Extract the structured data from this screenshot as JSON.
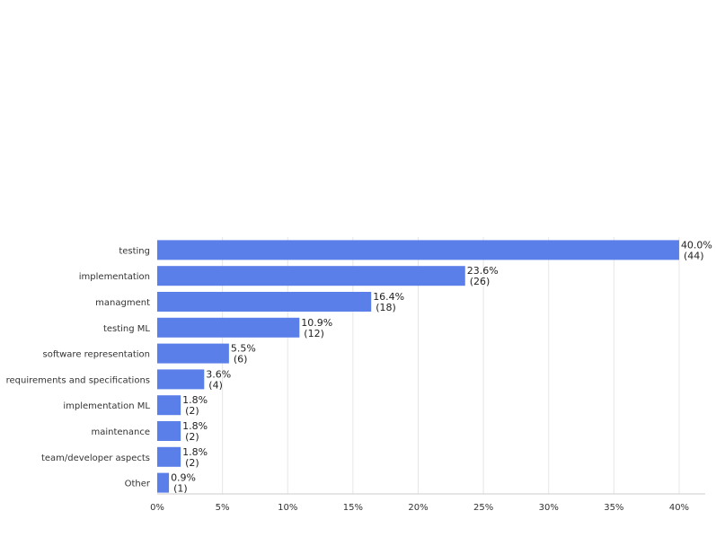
{
  "chart_data": {
    "type": "bar",
    "orientation": "horizontal",
    "title": "",
    "xlabel": "",
    "ylabel": "",
    "xlim": [
      0,
      42
    ],
    "categories": [
      "testing",
      "implementation",
      "managment",
      "testing ML",
      "software representation",
      "requirements and specifications",
      "implementation ML",
      "maintenance",
      "team/developer aspects",
      "Other"
    ],
    "values": [
      40.0,
      23.6,
      16.4,
      10.9,
      5.5,
      3.6,
      1.8,
      1.8,
      1.8,
      0.9
    ],
    "counts": [
      44,
      26,
      18,
      12,
      6,
      4,
      2,
      2,
      2,
      1
    ],
    "percent_labels": [
      "40.0%",
      "23.6%",
      "16.4%",
      "10.9%",
      "5.5%",
      "3.6%",
      "1.8%",
      "1.8%",
      "1.8%",
      "0.9%"
    ],
    "count_labels": [
      "(44)",
      "(26)",
      "(18)",
      "(12)",
      "(6)",
      "(4)",
      "(2)",
      "(2)",
      "(2)",
      "(1)"
    ],
    "ticks": [
      0,
      5,
      10,
      15,
      20,
      25,
      30,
      35,
      40
    ],
    "tick_labels": [
      "0%",
      "5%",
      "10%",
      "15%",
      "20%",
      "25%",
      "30%",
      "35%",
      "40%"
    ],
    "grid": true,
    "legend": "none",
    "colors": {
      "bar": "#5b7fe9",
      "grid": "#e6e6e6",
      "axis": "#cccccc"
    }
  }
}
